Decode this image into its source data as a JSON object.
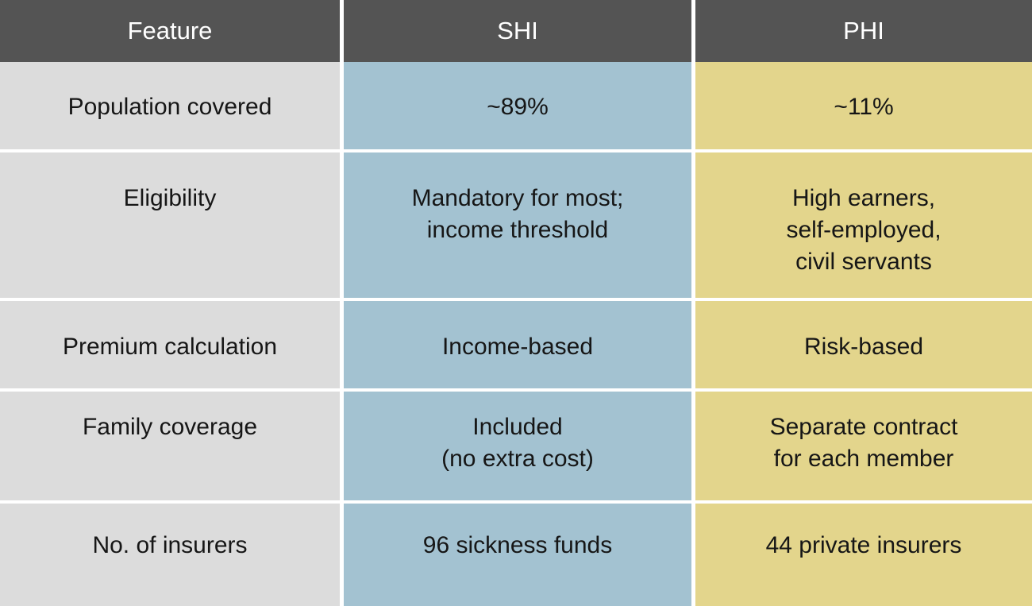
{
  "table": {
    "columns": [
      {
        "label": "Feature"
      },
      {
        "label": "SHI"
      },
      {
        "label": "PHI"
      }
    ],
    "rows": [
      {
        "feature": "Population covered",
        "shi": "~89%",
        "phi": "~11%"
      },
      {
        "feature": "Eligibility",
        "shi": "Mandatory for most;\nincome threshold",
        "phi": "High earners,\nself-employed,\ncivil servants"
      },
      {
        "feature": "Premium calculation",
        "shi": "Income-based",
        "phi": "Risk-based"
      },
      {
        "feature": "Family coverage",
        "shi": "Included\n(no extra cost)",
        "phi": "Separate contract\nfor each member"
      },
      {
        "feature": "No. of insurers",
        "shi": "96 sickness funds",
        "phi": "44 private insurers"
      }
    ]
  },
  "colors": {
    "header_bg": "#545454",
    "header_text": "#ffffff",
    "feature_bg": "#dcdcdc",
    "shi_bg": "#a3c2d1",
    "phi_bg": "#e3d58c",
    "text": "#161616",
    "gap": "#ffffff"
  },
  "chart_data": {
    "type": "table",
    "title": "",
    "columns": [
      "Feature",
      "SHI",
      "PHI"
    ],
    "rows": [
      [
        "Population covered",
        "~89%",
        "~11%"
      ],
      [
        "Eligibility",
        "Mandatory for most; income threshold",
        "High earners, self-employed, civil servants"
      ],
      [
        "Premium calculation",
        "Income-based",
        "Risk-based"
      ],
      [
        "Family coverage",
        "Included (no extra cost)",
        "Separate contract for each member"
      ],
      [
        "No. of insurers",
        "96 sickness funds",
        "44 private insurers"
      ]
    ]
  }
}
